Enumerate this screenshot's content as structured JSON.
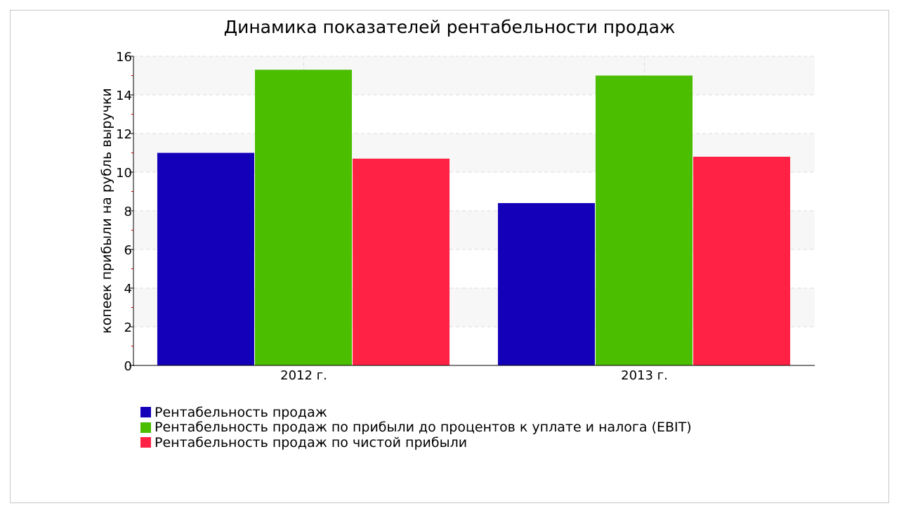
{
  "chart_data": {
    "type": "bar",
    "title": "Динамика показателей рентабельности продаж",
    "ylabel": "копеек прибыли на рубль выручки",
    "xlabel": "",
    "categories": [
      "2012 г.",
      "2013 г."
    ],
    "ylim": [
      0,
      16
    ],
    "yticks": [
      "0",
      "2",
      "4",
      "6",
      "8",
      "10",
      "12",
      "14",
      "16"
    ],
    "grid": true,
    "legend_position": "bottom-left",
    "series": [
      {
        "name": "Рентабельность продаж",
        "color": "#1400b8",
        "values": [
          11.0,
          8.4
        ]
      },
      {
        "name": "Рентабельность продаж по прибыли до процентов к уплате и налога (EBIT)",
        "color": "#4bbe00",
        "values": [
          15.3,
          15.0
        ]
      },
      {
        "name": "Рентабельность продаж по чистой прибыли",
        "color": "#ff2244",
        "values": [
          10.7,
          10.8
        ]
      }
    ]
  }
}
